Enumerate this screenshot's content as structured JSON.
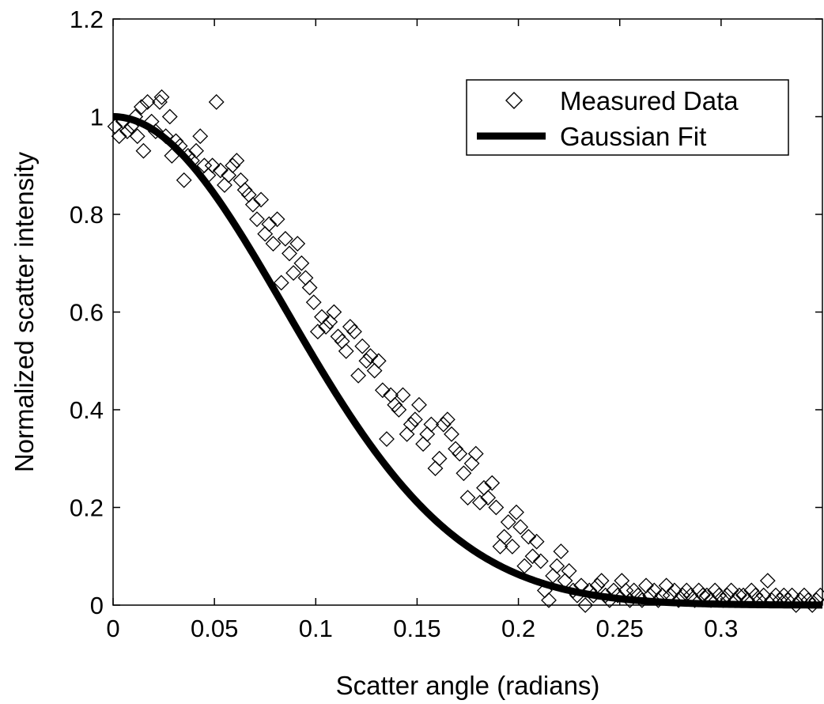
{
  "chart_data": {
    "type": "scatter",
    "xlabel": "Scatter angle (radians)",
    "ylabel": "Normalized scatter intensity",
    "xlim": [
      0,
      0.35
    ],
    "ylim": [
      0,
      1.2
    ],
    "xticks": [
      0,
      0.05,
      0.1,
      0.15,
      0.2,
      0.25,
      0.3
    ],
    "xtick_labels": [
      "0",
      "0.05",
      "0.1",
      "0.15",
      "0.2",
      "0.25",
      "0.3"
    ],
    "yticks": [
      0,
      0.2,
      0.4,
      0.6,
      0.8,
      1,
      1.2
    ],
    "ytick_labels": [
      "0",
      "0.2",
      "0.4",
      "0.6",
      "0.8",
      "1",
      "1.2"
    ],
    "grid": false,
    "legend_position": "top-right",
    "series": [
      {
        "name": "Measured Data",
        "marker": "diamond",
        "color": "#000000",
        "points": [
          [
            0.001,
            0.98
          ],
          [
            0.003,
            0.96
          ],
          [
            0.005,
            0.99
          ],
          [
            0.007,
            0.97
          ],
          [
            0.009,
            0.98
          ],
          [
            0.011,
            1.0
          ],
          [
            0.012,
            0.96
          ],
          [
            0.014,
            1.02
          ],
          [
            0.015,
            0.93
          ],
          [
            0.017,
            1.03
          ],
          [
            0.019,
            0.99
          ],
          [
            0.021,
            0.97
          ],
          [
            0.023,
            1.03
          ],
          [
            0.024,
            1.04
          ],
          [
            0.026,
            0.96
          ],
          [
            0.028,
            1.0
          ],
          [
            0.029,
            0.92
          ],
          [
            0.031,
            0.95
          ],
          [
            0.033,
            0.94
          ],
          [
            0.035,
            0.87
          ],
          [
            0.037,
            0.92
          ],
          [
            0.039,
            0.91
          ],
          [
            0.041,
            0.93
          ],
          [
            0.043,
            0.96
          ],
          [
            0.045,
            0.9
          ],
          [
            0.047,
            0.88
          ],
          [
            0.049,
            0.9
          ],
          [
            0.051,
            1.03
          ],
          [
            0.053,
            0.89
          ],
          [
            0.055,
            0.86
          ],
          [
            0.057,
            0.88
          ],
          [
            0.059,
            0.9
          ],
          [
            0.061,
            0.91
          ],
          [
            0.063,
            0.87
          ],
          [
            0.065,
            0.85
          ],
          [
            0.067,
            0.84
          ],
          [
            0.069,
            0.82
          ],
          [
            0.071,
            0.79
          ],
          [
            0.073,
            0.83
          ],
          [
            0.075,
            0.76
          ],
          [
            0.077,
            0.78
          ],
          [
            0.079,
            0.74
          ],
          [
            0.081,
            0.79
          ],
          [
            0.083,
            0.66
          ],
          [
            0.085,
            0.75
          ],
          [
            0.087,
            0.72
          ],
          [
            0.089,
            0.68
          ],
          [
            0.091,
            0.74
          ],
          [
            0.093,
            0.7
          ],
          [
            0.095,
            0.67
          ],
          [
            0.097,
            0.65
          ],
          [
            0.099,
            0.62
          ],
          [
            0.101,
            0.56
          ],
          [
            0.103,
            0.59
          ],
          [
            0.105,
            0.57
          ],
          [
            0.107,
            0.58
          ],
          [
            0.109,
            0.6
          ],
          [
            0.111,
            0.55
          ],
          [
            0.113,
            0.54
          ],
          [
            0.115,
            0.52
          ],
          [
            0.117,
            0.57
          ],
          [
            0.119,
            0.56
          ],
          [
            0.121,
            0.47
          ],
          [
            0.123,
            0.53
          ],
          [
            0.125,
            0.5
          ],
          [
            0.127,
            0.51
          ],
          [
            0.129,
            0.48
          ],
          [
            0.131,
            0.5
          ],
          [
            0.133,
            0.44
          ],
          [
            0.135,
            0.34
          ],
          [
            0.137,
            0.43
          ],
          [
            0.139,
            0.41
          ],
          [
            0.141,
            0.4
          ],
          [
            0.143,
            0.43
          ],
          [
            0.145,
            0.35
          ],
          [
            0.147,
            0.37
          ],
          [
            0.149,
            0.38
          ],
          [
            0.151,
            0.41
          ],
          [
            0.153,
            0.33
          ],
          [
            0.155,
            0.35
          ],
          [
            0.157,
            0.37
          ],
          [
            0.159,
            0.28
          ],
          [
            0.161,
            0.3
          ],
          [
            0.163,
            0.37
          ],
          [
            0.165,
            0.38
          ],
          [
            0.167,
            0.35
          ],
          [
            0.169,
            0.32
          ],
          [
            0.171,
            0.31
          ],
          [
            0.173,
            0.27
          ],
          [
            0.175,
            0.22
          ],
          [
            0.177,
            0.29
          ],
          [
            0.179,
            0.31
          ],
          [
            0.181,
            0.21
          ],
          [
            0.183,
            0.24
          ],
          [
            0.185,
            0.22
          ],
          [
            0.187,
            0.25
          ],
          [
            0.189,
            0.2
          ],
          [
            0.191,
            0.12
          ],
          [
            0.193,
            0.14
          ],
          [
            0.195,
            0.17
          ],
          [
            0.197,
            0.12
          ],
          [
            0.199,
            0.19
          ],
          [
            0.201,
            0.16
          ],
          [
            0.203,
            0.08
          ],
          [
            0.205,
            0.14
          ],
          [
            0.207,
            0.1
          ],
          [
            0.209,
            0.13
          ],
          [
            0.211,
            0.09
          ],
          [
            0.213,
            0.03
          ],
          [
            0.215,
            0.01
          ],
          [
            0.217,
            0.06
          ],
          [
            0.219,
            0.08
          ],
          [
            0.221,
            0.11
          ],
          [
            0.223,
            0.05
          ],
          [
            0.225,
            0.07
          ],
          [
            0.227,
            0.03
          ],
          [
            0.229,
            0.02
          ],
          [
            0.231,
            0.04
          ],
          [
            0.233,
            0.0
          ],
          [
            0.235,
            0.03
          ],
          [
            0.237,
            0.02
          ],
          [
            0.239,
            0.04
          ],
          [
            0.241,
            0.05
          ],
          [
            0.243,
            0.02
          ],
          [
            0.245,
            0.01
          ],
          [
            0.247,
            0.03
          ],
          [
            0.249,
            0.02
          ],
          [
            0.251,
            0.05
          ],
          [
            0.253,
            0.03
          ],
          [
            0.255,
            0.01
          ],
          [
            0.257,
            0.03
          ],
          [
            0.259,
            0.02
          ],
          [
            0.261,
            0.01
          ],
          [
            0.263,
            0.04
          ],
          [
            0.265,
            0.02
          ],
          [
            0.267,
            0.03
          ],
          [
            0.269,
            0.01
          ],
          [
            0.271,
            0.02
          ],
          [
            0.273,
            0.04
          ],
          [
            0.275,
            0.02
          ],
          [
            0.277,
            0.03
          ],
          [
            0.279,
            0.01
          ],
          [
            0.281,
            0.02
          ],
          [
            0.283,
            0.03
          ],
          [
            0.285,
            0.02
          ],
          [
            0.287,
            0.01
          ],
          [
            0.289,
            0.03
          ],
          [
            0.291,
            0.02
          ],
          [
            0.293,
            0.02
          ],
          [
            0.295,
            0.01
          ],
          [
            0.297,
            0.03
          ],
          [
            0.299,
            0.02
          ],
          [
            0.301,
            0.01
          ],
          [
            0.303,
            0.02
          ],
          [
            0.305,
            0.03
          ],
          [
            0.307,
            0.01
          ],
          [
            0.309,
            0.02
          ],
          [
            0.311,
            0.02
          ],
          [
            0.313,
            0.01
          ],
          [
            0.315,
            0.03
          ],
          [
            0.317,
            0.02
          ],
          [
            0.319,
            0.01
          ],
          [
            0.321,
            0.02
          ],
          [
            0.323,
            0.05
          ],
          [
            0.325,
            0.01
          ],
          [
            0.327,
            0.02
          ],
          [
            0.329,
            0.01
          ],
          [
            0.331,
            0.02
          ],
          [
            0.333,
            0.01
          ],
          [
            0.335,
            0.02
          ],
          [
            0.337,
            0.0
          ],
          [
            0.339,
            0.01
          ],
          [
            0.341,
            0.02
          ],
          [
            0.343,
            0.01
          ],
          [
            0.345,
            0.0
          ],
          [
            0.347,
            0.01
          ],
          [
            0.349,
            0.02
          ]
        ]
      },
      {
        "name": "Gaussian Fit",
        "marker": "line",
        "color": "#000000",
        "function": "exp(-x^2 / (2 * 0.085^2))",
        "sigma": 0.085,
        "amplitude": 1.0
      }
    ]
  }
}
